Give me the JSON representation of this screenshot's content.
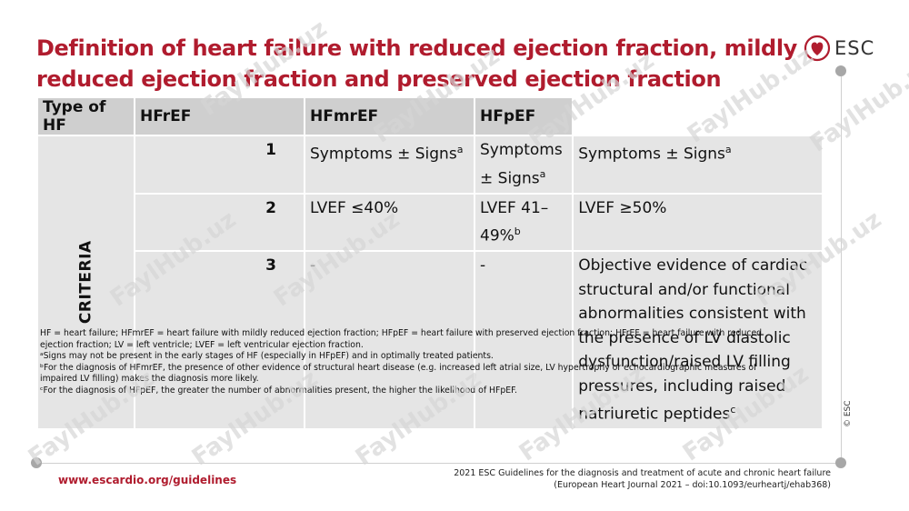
{
  "title": "Definition of heart failure with reduced ejection fraction, mildly reduced ejection fraction and preserved ejection fraction",
  "logo": {
    "text": "ESC",
    "icon": "heart-logo-icon"
  },
  "copyright": "© ESC",
  "table": {
    "headers": [
      "Type of HF",
      "HFrEF",
      "HFmrEF",
      "HFpEF"
    ],
    "criteria_label": "CRITERIA",
    "rows": [
      {
        "num": "1",
        "hfref": "Symptoms ± Signs",
        "hfref_sup": "a",
        "hfmref": "Symptoms ± Signs",
        "hfmref_sup": "a",
        "hfpef": "Symptoms ± Signs",
        "hfpef_sup": "a"
      },
      {
        "num": "2",
        "hfref": "LVEF ≤40%",
        "hfmref": "LVEF 41–49%",
        "hfmref_sup": "b",
        "hfpef": "LVEF ≥50%"
      },
      {
        "num": "3",
        "hfref": "-",
        "hfmref": "-",
        "hfpef": "Objective evidence of cardiac structural and/or functional abnormalities consistent with the presence of LV diastolic dysfunction/raised LV filling pressures, including raised natriuretic peptides",
        "hfpef_sup": "c"
      }
    ]
  },
  "footnotes": [
    "HF = heart failure; HFmrEF = heart failure with mildly reduced ejection fraction; HFpEF = heart failure with preserved ejection fraction; HFrEF = heart failure with reduced ejection fraction; LV = left ventricle; LVEF = left ventricular ejection fraction.",
    "ᵃSigns may not be present in the early stages of HF (especially in HFpEF) and in optimally treated patients.",
    "ᵇFor the diagnosis of HFmrEF, the presence of other evidence of structural heart disease (e.g. increased left atrial size, LV hypertrophy or echocardiographic measures of impaired LV filling) makes the diagnosis more likely.",
    "ᶜFor the diagnosis of HFpEF, the greater the number of abnormalities present, the higher the likelihood of HFpEF."
  ],
  "footer": {
    "url": "www.escardio.org/guidelines",
    "citation_line1": "2021 ESC Guidelines for the diagnosis and treatment of acute and chronic heart failure",
    "citation_line2": "(European Heart Journal 2021 – doi:10.1093/eurheartj/ehab368)"
  },
  "watermark": "FaylHub.uz",
  "colors": {
    "accent": "#b01c2e",
    "header_bg": "#cfcfcf",
    "cell_bg": "#e5e5e5"
  }
}
